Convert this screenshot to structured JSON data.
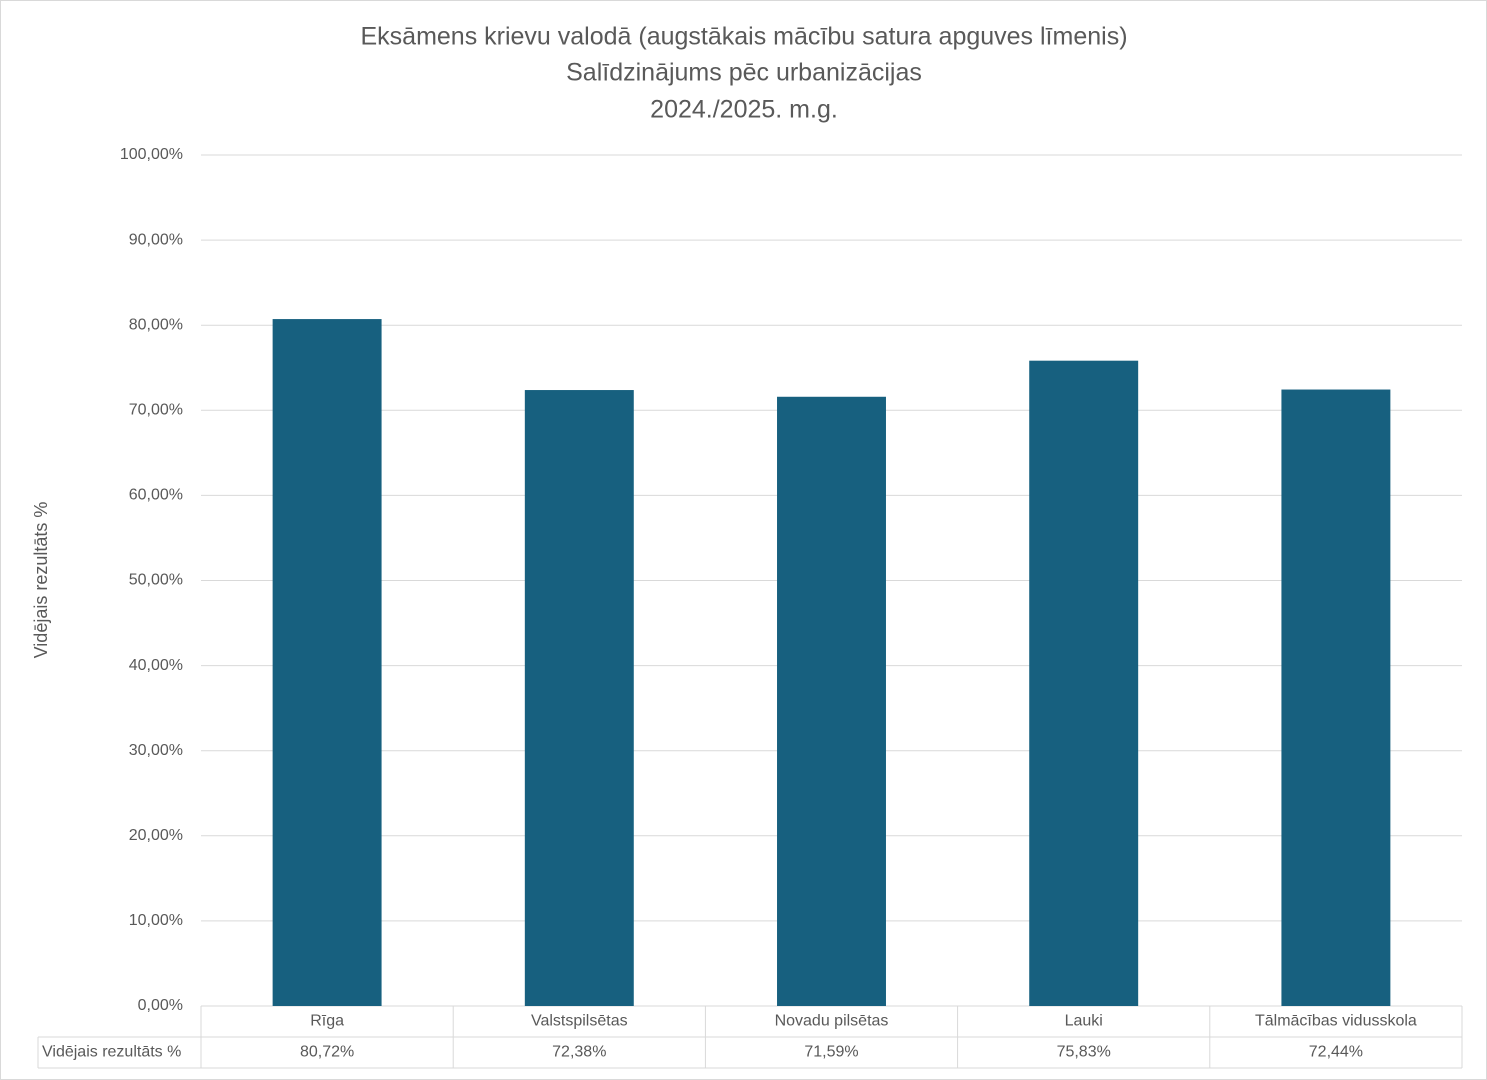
{
  "chart_data": {
    "type": "bar",
    "title": "Eksāmens krievu valodā (augstākais mācību satura apguves līmenis)",
    "subtitle": "Salīdzinājums pēc urbanizācijas",
    "period": "2024./2025. m.g.",
    "y_label": "Vidējais rezultāts %",
    "categories": [
      "Rīga",
      "Valstspilsētas",
      "Novadu pilsētas",
      "Lauki",
      "Tālmācības vidusskola"
    ],
    "series": [
      {
        "name": "Vidējais rezultāts %",
        "color": "#17607f",
        "values": [
          80.72,
          72.38,
          71.59,
          75.83,
          72.44
        ],
        "value_labels": [
          "80,72%",
          "72,38%",
          "71,59%",
          "75,83%",
          "72,44%"
        ]
      }
    ],
    "ylim": [
      0,
      100
    ],
    "yticks": [
      {
        "value": 0,
        "label": "0,00%"
      },
      {
        "value": 10,
        "label": "10,00%"
      },
      {
        "value": 20,
        "label": "20,00%"
      },
      {
        "value": 30,
        "label": "30,00%"
      },
      {
        "value": 40,
        "label": "40,00%"
      },
      {
        "value": 50,
        "label": "50,00%"
      },
      {
        "value": 60,
        "label": "60,00%"
      },
      {
        "value": 70,
        "label": "70,00%"
      },
      {
        "value": 80,
        "label": "80,00%"
      },
      {
        "value": 90,
        "label": "90,00%"
      },
      {
        "value": 100,
        "label": "100,00%"
      }
    ],
    "grid": true
  }
}
